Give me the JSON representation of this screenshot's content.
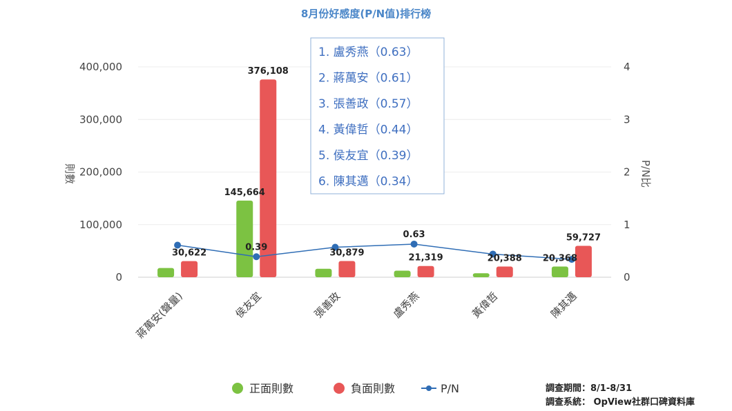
{
  "chart_data": {
    "type": "bar",
    "title": "8月份好感度(P/N值)排行榜",
    "categories": [
      "蔣萬安(聲量)",
      "侯友宜",
      "張善政",
      "盧秀燕",
      "黃偉哲",
      "陳其邁"
    ],
    "series": [
      {
        "name": "正面則數",
        "type": "bar",
        "axis": "left",
        "color": "#7cc242",
        "values": [
          17500,
          145664,
          16000,
          12500,
          7500,
          20368
        ]
      },
      {
        "name": "負面則數",
        "type": "bar",
        "axis": "left",
        "color": "#e85757",
        "values": [
          30622,
          376108,
          30879,
          21319,
          20388,
          59727
        ]
      },
      {
        "name": "P/N",
        "type": "line",
        "axis": "right",
        "color": "#2f6db5",
        "values": [
          0.61,
          0.39,
          0.57,
          0.63,
          0.44,
          0.34
        ]
      }
    ],
    "data_labels": [
      {
        "series": 1,
        "index": 0,
        "text": "30,622"
      },
      {
        "series": 0,
        "index": 1,
        "text": "145,664"
      },
      {
        "series": 1,
        "index": 1,
        "text": "376,108"
      },
      {
        "series": 2,
        "index": 1,
        "text": "0.39"
      },
      {
        "series": 1,
        "index": 2,
        "text": "30,879"
      },
      {
        "series": 2,
        "index": 3,
        "text": "0.63"
      },
      {
        "series": 1,
        "index": 3,
        "text": "21,319"
      },
      {
        "series": 1,
        "index": 4,
        "text": "20,388"
      },
      {
        "series": 0,
        "index": 5,
        "text": "20,368"
      },
      {
        "series": 1,
        "index": 5,
        "text": "59,727"
      }
    ],
    "ylabel": "則數",
    "ylim": [
      0,
      400000
    ],
    "yticks": [
      "400,000",
      "300,000",
      "200,000",
      "100,000",
      "0"
    ],
    "y2label": "P/N比",
    "y2lim": [
      0,
      4
    ],
    "y2ticks": [
      "4",
      "3",
      "2",
      "1",
      "0"
    ],
    "grid": true,
    "legend_position": "bottom"
  },
  "ranking": [
    "1. 盧秀燕（0.63）",
    "2. 蔣萬安（0.61）",
    "3. 張善政（0.57）",
    "4. 黃偉哲（0.44）",
    "5. 侯友宜（0.39）",
    "6. 陳其邁（0.34）"
  ],
  "legend": [
    {
      "label": "正面則數",
      "color": "#7cc242",
      "kind": "dot"
    },
    {
      "label": "負面則數",
      "color": "#e85757",
      "kind": "dot"
    },
    {
      "label": "P/N",
      "color": "#2f6db5",
      "kind": "line"
    }
  ],
  "notes": [
    "調查期間：8/1-8/31",
    "調查系統： OpView社群口碑資料庫"
  ]
}
